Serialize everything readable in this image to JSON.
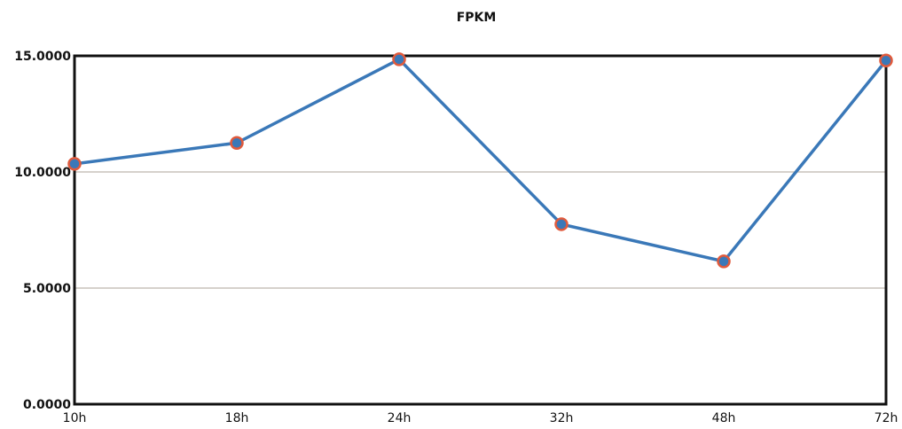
{
  "chart_data": {
    "type": "line",
    "title": "FPKM",
    "xlabel": "",
    "ylabel": "",
    "categories": [
      "10h",
      "18h",
      "24h",
      "32h",
      "48h",
      "72h"
    ],
    "series": [
      {
        "values": [
          10.35,
          11.25,
          14.85,
          7.75,
          6.15,
          14.8
        ]
      }
    ],
    "ylim": [
      0,
      15
    ],
    "yticks": [
      "0.0000",
      "5.0000",
      "10.0000",
      "15.0000"
    ],
    "grid": true,
    "legend": "none",
    "colors": {
      "line": "#3a78b8",
      "marker_fill": "#3a78b8",
      "marker_stroke": "#e05a3c",
      "grid": "#c9c2bc",
      "frame": "#111111"
    }
  }
}
